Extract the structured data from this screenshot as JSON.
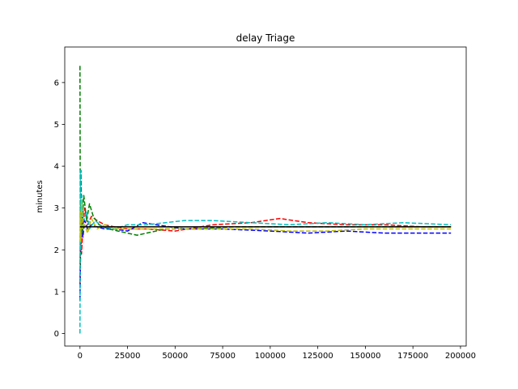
{
  "chart_data": {
    "type": "line",
    "title": "delay Triage",
    "xlabel": "",
    "ylabel": "minutes",
    "xlim": [
      -8000,
      203000
    ],
    "ylim": [
      -0.3,
      6.85
    ],
    "xticks": [
      0,
      25000,
      50000,
      75000,
      100000,
      125000,
      150000,
      175000,
      200000
    ],
    "yticks": [
      0,
      1,
      2,
      3,
      4,
      5,
      6
    ],
    "grid": false,
    "legend": "none",
    "reference_line": {
      "y": 2.55,
      "x_range": [
        0,
        195000
      ],
      "color": "#000000"
    },
    "series": [
      {
        "color": "#ff0000",
        "style": "dashed",
        "x": [
          0,
          300,
          800,
          1500,
          2500,
          4000,
          6000,
          9000,
          13000,
          18000,
          25000,
          35000,
          50000,
          70000,
          90000,
          105000,
          120000,
          140000,
          160000,
          180000,
          195000
        ],
        "y": [
          1.2,
          3.1,
          1.9,
          2.5,
          3.0,
          2.6,
          2.8,
          2.7,
          2.6,
          2.55,
          2.5,
          2.5,
          2.45,
          2.6,
          2.65,
          2.75,
          2.65,
          2.6,
          2.6,
          2.55,
          2.55
        ]
      },
      {
        "color": "#0000ff",
        "style": "dashed",
        "x": [
          0,
          300,
          800,
          1500,
          2500,
          4000,
          6000,
          9000,
          13000,
          18000,
          25000,
          33000,
          40000,
          55000,
          75000,
          100000,
          120000,
          140000,
          160000,
          180000,
          195000
        ],
        "y": [
          0.8,
          2.0,
          2.9,
          2.3,
          2.7,
          2.5,
          2.6,
          2.55,
          2.5,
          2.5,
          2.45,
          2.65,
          2.6,
          2.5,
          2.5,
          2.45,
          2.4,
          2.45,
          2.4,
          2.4,
          2.4
        ]
      },
      {
        "color": "#008000",
        "style": "dashed",
        "x": [
          0,
          200,
          500,
          1000,
          2000,
          3500,
          5000,
          7000,
          10000,
          15000,
          20000,
          25000,
          30000,
          35000,
          45000,
          60000,
          80000,
          100000,
          130000,
          160000,
          195000
        ],
        "y": [
          6.4,
          1.6,
          3.9,
          2.4,
          3.3,
          2.7,
          3.1,
          2.8,
          2.6,
          2.5,
          2.45,
          2.4,
          2.35,
          2.4,
          2.5,
          2.5,
          2.55,
          2.55,
          2.55,
          2.55,
          2.55
        ]
      },
      {
        "color": "#00bfbf",
        "style": "dashed",
        "x": [
          0,
          200,
          500,
          1000,
          2000,
          3500,
          5000,
          8000,
          12000,
          18000,
          25000,
          35000,
          45000,
          55000,
          70000,
          90000,
          110000,
          130000,
          150000,
          170000,
          195000
        ],
        "y": [
          0.0,
          3.9,
          2.0,
          3.3,
          2.7,
          2.9,
          2.5,
          2.7,
          2.55,
          2.5,
          2.6,
          2.6,
          2.65,
          2.7,
          2.7,
          2.65,
          2.6,
          2.65,
          2.6,
          2.65,
          2.6
        ]
      },
      {
        "color": "#bfbf00",
        "style": "dashed",
        "x": [
          0,
          300,
          800,
          1500,
          2500,
          4000,
          6000,
          9000,
          13000,
          18000,
          25000,
          35000,
          50000,
          70000,
          90000,
          110000,
          130000,
          150000,
          170000,
          185000,
          195000
        ],
        "y": [
          2.9,
          2.2,
          3.2,
          2.5,
          2.6,
          2.4,
          2.75,
          2.5,
          2.6,
          2.5,
          2.5,
          2.5,
          2.5,
          2.5,
          2.5,
          2.45,
          2.45,
          2.5,
          2.5,
          2.5,
          2.5
        ]
      }
    ]
  }
}
